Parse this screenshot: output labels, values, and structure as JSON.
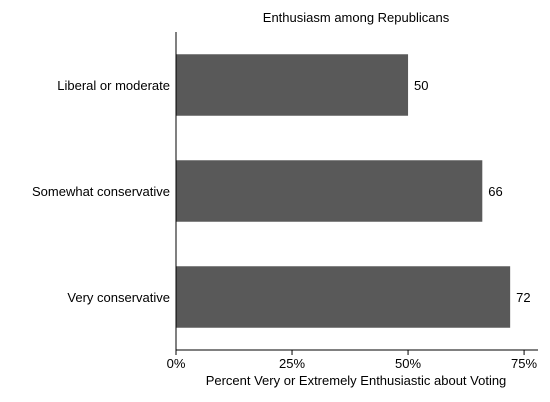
{
  "chart_data": {
    "type": "bar",
    "orientation": "horizontal",
    "title": "Enthusiasm among Republicans",
    "xlabel": "Percent Very or Extremely Enthusiastic about Voting",
    "ylabel": "",
    "categories": [
      "Liberal or moderate",
      "Somewhat conservative",
      "Very conservative"
    ],
    "values": [
      50,
      66,
      72
    ],
    "value_labels": [
      "50",
      "66",
      "72"
    ],
    "xlim": [
      0,
      78
    ],
    "xticks": [
      0,
      25,
      50,
      75
    ],
    "xtick_labels": [
      "0%",
      "25%",
      "50%",
      "75%"
    ],
    "bar_color": "#595959",
    "grid": false,
    "legend": "none"
  }
}
